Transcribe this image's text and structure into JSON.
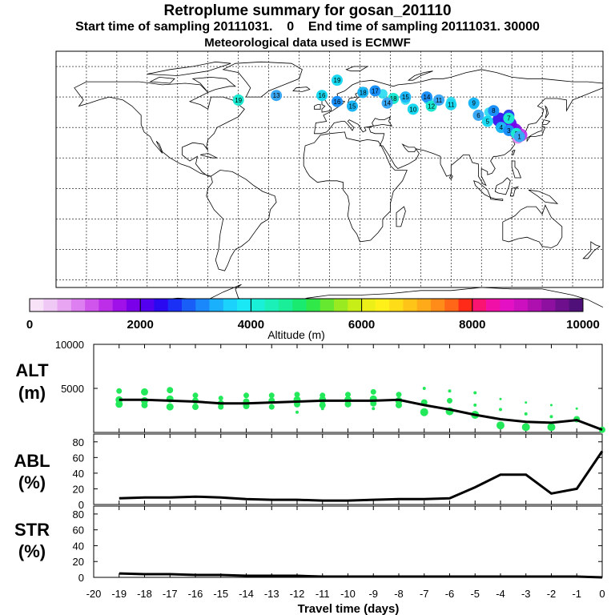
{
  "header": {
    "title": "Retroplume summary for gosan_201110",
    "sampling": "Start time of sampling 20111031.    0    End time of sampling 20111031. 30000",
    "met": "Meteorological data used is ECMWF"
  },
  "colorbar": {
    "ticks": [
      "0",
      "2000",
      "4000",
      "6000",
      "8000",
      "10000"
    ],
    "label": "Altitude (m)",
    "colors": [
      "#f7e2f7",
      "#f0c8f5",
      "#e8a6f2",
      "#dd7ff0",
      "#cf55ec",
      "#bc2ee8",
      "#a010e8",
      "#7a00ea",
      "#5200ee",
      "#2a08f0",
      "#1a30f5",
      "#1a5ef8",
      "#1a88fb",
      "#1ab0fc",
      "#1ad2fc",
      "#1ae8f5",
      "#1af0d8",
      "#1af0b8",
      "#1aee98",
      "#1aea70",
      "#30e848",
      "#66e830",
      "#99ea20",
      "#c8ee18",
      "#ecf018",
      "#fff01a",
      "#ffdc18",
      "#ffc418",
      "#ffaa18",
      "#ff8c18",
      "#ff6618",
      "#ff2a18",
      "#f81470",
      "#f010a8",
      "#e410c4",
      "#cc10c0",
      "#ae10b0",
      "#8e10a0",
      "#6e108e",
      "#50107a"
    ]
  },
  "map_labels": [
    {
      "text": "19",
      "lon": 5,
      "lat": 71
    },
    {
      "text": "18",
      "lon": 22,
      "lat": 63
    },
    {
      "text": "17",
      "lon": 30,
      "lat": 64
    },
    {
      "text": "18",
      "lon": 42,
      "lat": 59
    },
    {
      "text": "14",
      "lon": 38,
      "lat": 56
    },
    {
      "text": "10",
      "lon": 55,
      "lat": 52
    },
    {
      "text": "15",
      "lon": 50,
      "lat": 60
    },
    {
      "text": "14",
      "lon": 64,
      "lat": 60
    },
    {
      "text": "12",
      "lon": 67,
      "lat": 54
    },
    {
      "text": "11",
      "lon": 72,
      "lat": 58
    },
    {
      "text": "11",
      "lon": 80,
      "lat": 55
    },
    {
      "text": "9",
      "lon": 95,
      "lat": 56
    },
    {
      "text": "8",
      "lon": 108,
      "lat": 51
    },
    {
      "text": "7",
      "lon": 118,
      "lat": 46
    },
    {
      "text": "6",
      "lon": 98,
      "lat": 48
    },
    {
      "text": "5",
      "lon": 104,
      "lat": 44
    },
    {
      "text": "4",
      "lon": 113,
      "lat": 40
    },
    {
      "text": "3",
      "lon": 118,
      "lat": 38
    },
    {
      "text": "2",
      "lon": 123,
      "lat": 36
    },
    {
      "text": "1",
      "lon": 125,
      "lat": 34
    },
    {
      "text": "16",
      "lon": -5,
      "lat": 61
    },
    {
      "text": "15",
      "lon": 15,
      "lat": 54
    },
    {
      "text": "16",
      "lon": 5,
      "lat": 57
    },
    {
      "text": "19",
      "lon": -60,
      "lat": 58
    },
    {
      "text": "13",
      "lon": -35,
      "lat": 61
    }
  ],
  "chart_data": [
    {
      "type": "scatter",
      "name": "ALT",
      "ylabel": "ALT (m)",
      "ylim": [
        0,
        10000
      ],
      "yticks": [
        5000,
        10000
      ],
      "xlim": [
        -20,
        0
      ],
      "median_line": {
        "x": [
          -19,
          -18,
          -17,
          -16,
          -15,
          -14,
          -13,
          -12,
          -11,
          -10,
          -9,
          -8,
          -7,
          -6,
          -5,
          -4,
          -3,
          -2,
          -1,
          0
        ],
        "y": [
          3700,
          3700,
          3600,
          3500,
          3300,
          3300,
          3400,
          3500,
          3600,
          3600,
          3600,
          3700,
          3100,
          2600,
          2000,
          1500,
          1200,
          1100,
          1400,
          300
        ]
      },
      "points": [
        {
          "x": -19,
          "y": 4700,
          "r": 3.5
        },
        {
          "x": -19,
          "y": 3700,
          "r": 4.5
        },
        {
          "x": -19,
          "y": 3200,
          "r": 4.5
        },
        {
          "x": -18,
          "y": 4600,
          "r": 4.5
        },
        {
          "x": -18,
          "y": 3600,
          "r": 4.5
        },
        {
          "x": -18,
          "y": 3100,
          "r": 4
        },
        {
          "x": -17,
          "y": 4800,
          "r": 4
        },
        {
          "x": -17,
          "y": 3800,
          "r": 4.5
        },
        {
          "x": -17,
          "y": 2900,
          "r": 4.5
        },
        {
          "x": -16,
          "y": 4200,
          "r": 3.5
        },
        {
          "x": -16,
          "y": 3600,
          "r": 4
        },
        {
          "x": -16,
          "y": 2900,
          "r": 4
        },
        {
          "x": -15,
          "y": 3900,
          "r": 3
        },
        {
          "x": -15,
          "y": 3300,
          "r": 4
        },
        {
          "x": -15,
          "y": 2900,
          "r": 3.5
        },
        {
          "x": -14,
          "y": 4200,
          "r": 3.5
        },
        {
          "x": -14,
          "y": 3500,
          "r": 4
        },
        {
          "x": -14,
          "y": 3000,
          "r": 4
        },
        {
          "x": -13,
          "y": 4200,
          "r": 3.5
        },
        {
          "x": -13,
          "y": 3600,
          "r": 4
        },
        {
          "x": -13,
          "y": 2900,
          "r": 3.5
        },
        {
          "x": -12,
          "y": 4300,
          "r": 3.5
        },
        {
          "x": -12,
          "y": 3700,
          "r": 4.5
        },
        {
          "x": -12,
          "y": 3200,
          "r": 4
        },
        {
          "x": -12,
          "y": 2300,
          "r": 2
        },
        {
          "x": -11,
          "y": 4200,
          "r": 3.5
        },
        {
          "x": -11,
          "y": 3700,
          "r": 4.5
        },
        {
          "x": -11,
          "y": 3100,
          "r": 4
        },
        {
          "x": -11,
          "y": 2700,
          "r": 2
        },
        {
          "x": -10,
          "y": 4300,
          "r": 3.5
        },
        {
          "x": -10,
          "y": 3700,
          "r": 4.5
        },
        {
          "x": -10,
          "y": 3200,
          "r": 4
        },
        {
          "x": -9,
          "y": 4600,
          "r": 3.5
        },
        {
          "x": -9,
          "y": 3800,
          "r": 4.5
        },
        {
          "x": -9,
          "y": 3300,
          "r": 4
        },
        {
          "x": -9,
          "y": 2700,
          "r": 2
        },
        {
          "x": -8,
          "y": 4300,
          "r": 3.5
        },
        {
          "x": -8,
          "y": 3600,
          "r": 4.5
        },
        {
          "x": -8,
          "y": 3100,
          "r": 4
        },
        {
          "x": -7,
          "y": 5000,
          "r": 2
        },
        {
          "x": -7,
          "y": 3400,
          "r": 4
        },
        {
          "x": -7,
          "y": 2300,
          "r": 5
        },
        {
          "x": -6,
          "y": 4700,
          "r": 2
        },
        {
          "x": -6,
          "y": 3600,
          "r": 3.5
        },
        {
          "x": -6,
          "y": 2400,
          "r": 5
        },
        {
          "x": -5,
          "y": 4500,
          "r": 2
        },
        {
          "x": -5,
          "y": 3100,
          "r": 2
        },
        {
          "x": -5,
          "y": 2000,
          "r": 5
        },
        {
          "x": -4,
          "y": 3800,
          "r": 1.5
        },
        {
          "x": -4,
          "y": 2600,
          "r": 2
        },
        {
          "x": -4,
          "y": 800,
          "r": 5
        },
        {
          "x": -3,
          "y": 3400,
          "r": 1.5
        },
        {
          "x": -3,
          "y": 2100,
          "r": 2
        },
        {
          "x": -3,
          "y": 600,
          "r": 5
        },
        {
          "x": -2,
          "y": 3100,
          "r": 1.5
        },
        {
          "x": -2,
          "y": 1800,
          "r": 2
        },
        {
          "x": -2,
          "y": 600,
          "r": 5
        },
        {
          "x": -1,
          "y": 2700,
          "r": 1.5
        },
        {
          "x": -1,
          "y": 1500,
          "r": 4
        },
        {
          "x": 0,
          "y": 300,
          "r": 4
        }
      ]
    },
    {
      "type": "line",
      "name": "ABL",
      "ylabel": "ABL (%)",
      "ylim": [
        0,
        90
      ],
      "yticks": [
        0,
        20,
        40,
        60,
        80
      ],
      "xlim": [
        -20,
        0
      ],
      "x": [
        -19,
        -18,
        -17,
        -16,
        -15,
        -14,
        -13,
        -12,
        -11,
        -10,
        -9,
        -8,
        -7,
        -6,
        -5,
        -4,
        -3,
        -2,
        -1,
        0
      ],
      "y": [
        8,
        9,
        9,
        10,
        9,
        7,
        6,
        6,
        5,
        5,
        6,
        7,
        7,
        8,
        22,
        38,
        38,
        14,
        20,
        68
      ]
    },
    {
      "type": "line",
      "name": "STR",
      "ylabel": "STR (%)",
      "ylim": [
        0,
        90
      ],
      "yticks": [
        0,
        20,
        40,
        60,
        80
      ],
      "xlim": [
        -20,
        0
      ],
      "x": [
        -19,
        -18,
        -17,
        -16,
        -15,
        -14,
        -13,
        -12,
        -11,
        -10,
        -9,
        -8,
        -7,
        -6,
        -5,
        -4,
        -3,
        -2,
        -1,
        0
      ],
      "y": [
        5,
        4,
        4,
        3,
        3,
        2,
        2,
        2,
        1,
        1,
        1,
        1,
        1,
        1,
        1,
        1,
        1,
        1,
        1,
        0
      ]
    }
  ],
  "xaxis": {
    "label": "Travel time (days)",
    "ticks": [
      -20,
      -19,
      -18,
      -17,
      -16,
      -15,
      -14,
      -13,
      -12,
      -11,
      -10,
      -9,
      -8,
      -7,
      -6,
      -5,
      -4,
      -3,
      -2,
      -1,
      0
    ]
  }
}
